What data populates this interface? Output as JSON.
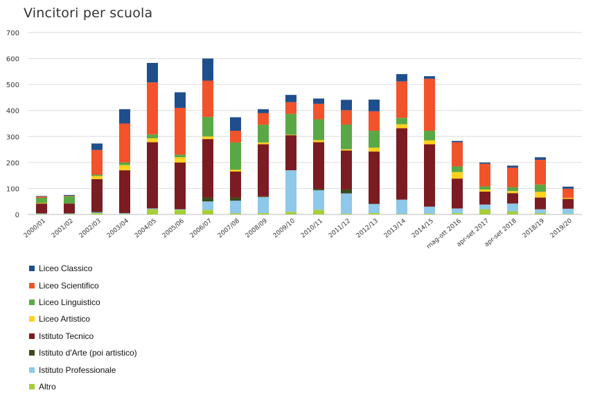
{
  "chart_data": {
    "type": "bar",
    "stacked": true,
    "title": "Vincitori per scuola",
    "xlabel": "",
    "ylabel": "",
    "ylim": [
      0,
      700
    ],
    "yticks": [
      "0",
      "100",
      "200",
      "300",
      "400",
      "500",
      "600",
      "700"
    ],
    "grid": true,
    "legend_position": "bottom-left",
    "categories": [
      "2000/01",
      "2001/02",
      "2002/03",
      "2003/04",
      "2004/05",
      "2005/06",
      "2006/07",
      "2007/08",
      "2008/09",
      "2009/10",
      "2010/11",
      "2011/12",
      "2012/13",
      "2013/14",
      "2014/15",
      "mag-ott 2016",
      "apr-set 2017",
      "apr-set 2018",
      "2018/19",
      "2019/20"
    ],
    "series": [
      {
        "name": "Altro",
        "color": "#a6ce39",
        "values": [
          2,
          2,
          5,
          2,
          20,
          18,
          18,
          5,
          5,
          10,
          18,
          3,
          5,
          2,
          3,
          5,
          20,
          12,
          5,
          2
        ]
      },
      {
        "name": "Istituto Professionale",
        "color": "#8ec8ea",
        "values": [
          2,
          2,
          3,
          3,
          3,
          2,
          32,
          48,
          62,
          160,
          75,
          78,
          35,
          55,
          27,
          18,
          18,
          30,
          15,
          20
        ]
      },
      {
        "name": "Istituto d'Arte (poi artistico)",
        "color": "#3b4a1c",
        "values": [
          0,
          0,
          3,
          0,
          0,
          0,
          15,
          12,
          3,
          0,
          5,
          15,
          2,
          0,
          0,
          0,
          0,
          0,
          0,
          0
        ]
      },
      {
        "name": "Istituto Tecnico",
        "color": "#7b1c22",
        "values": [
          38,
          38,
          125,
          165,
          255,
          180,
          225,
          100,
          200,
          135,
          180,
          150,
          200,
          275,
          240,
          115,
          50,
          40,
          45,
          38
        ]
      },
      {
        "name": "Liceo Artistico",
        "color": "#ffd21f",
        "values": [
          2,
          0,
          12,
          20,
          15,
          20,
          10,
          7,
          7,
          2,
          8,
          5,
          15,
          15,
          15,
          25,
          8,
          8,
          22,
          4
        ]
      },
      {
        "name": "Liceo Linguistico",
        "color": "#5aa845",
        "values": [
          20,
          28,
          5,
          10,
          15,
          10,
          75,
          105,
          68,
          80,
          80,
          95,
          65,
          25,
          37,
          22,
          12,
          15,
          28,
          0
        ]
      },
      {
        "name": "Liceo Scientifico",
        "color": "#f2532b",
        "values": [
          5,
          2,
          95,
          150,
          200,
          180,
          140,
          45,
          45,
          45,
          60,
          55,
          75,
          140,
          200,
          93,
          87,
          75,
          95,
          35
        ]
      },
      {
        "name": "Liceo Classico",
        "color": "#1f4e8c",
        "values": [
          2,
          3,
          25,
          55,
          75,
          60,
          85,
          52,
          15,
          28,
          20,
          40,
          45,
          28,
          10,
          5,
          5,
          8,
          10,
          8
        ]
      }
    ]
  },
  "legend_order": [
    "Liceo Classico",
    "Liceo Scientifico",
    "Liceo Linguistico",
    "Liceo Artistico",
    "Istituto Tecnico",
    "Istituto d'Arte (poi artistico)",
    "Istituto Professionale",
    "Altro"
  ]
}
